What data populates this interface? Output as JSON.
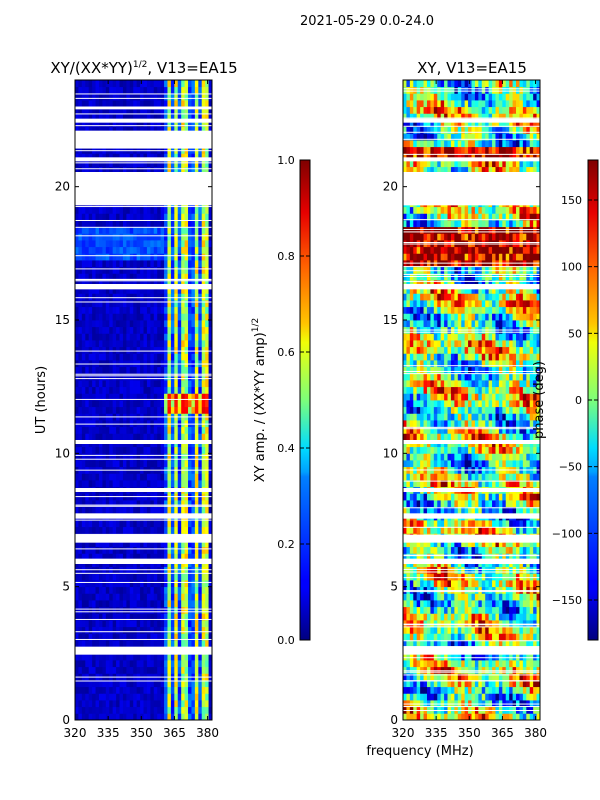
{
  "figure": {
    "suptitle": "2021-05-29 0.0-24.0",
    "xlabel": "frequency (MHz)"
  },
  "colors": {
    "jet_low": "#00007f",
    "jet_high": "#7f0000",
    "background": "#ffffff"
  },
  "chart_data": [
    {
      "type": "heatmap",
      "title_prefix": "XY/(XX*YY)",
      "title_exponent": "1/2",
      "title_suffix": ", V13=EA15",
      "xlabel": "",
      "ylabel": "UT (hours)",
      "xlim": [
        320,
        382
      ],
      "ylim": [
        0,
        24
      ],
      "xticks": [
        320,
        335,
        350,
        365,
        380
      ],
      "yticks": [
        0,
        5,
        10,
        15,
        20
      ],
      "bright_channels_mhz": [
        362,
        366,
        369,
        371,
        375,
        379
      ],
      "hot_ut_hours": [
        11.6,
        12.2
      ],
      "flagged_ut_intervals": [
        [
          2.45,
          2.75
        ],
        [
          5.85,
          6.05
        ],
        [
          6.65,
          6.95
        ],
        [
          7.55,
          7.75
        ],
        [
          8.55,
          8.7
        ],
        [
          10.35,
          10.5
        ],
        [
          16.15,
          16.35
        ],
        [
          19.3,
          20.55
        ],
        [
          20.95,
          21.1
        ],
        [
          21.45,
          22.1
        ],
        [
          22.4,
          22.55
        ],
        [
          22.9,
          23.0
        ]
      ],
      "colorbar": {
        "label_prefix": "XY amp. / (XX*YY amp)",
        "label_exponent": "1/2",
        "range": [
          0.0,
          1.0
        ],
        "tick_labels": [
          "0.0",
          "0.2",
          "0.4",
          "0.6",
          "0.8",
          "1.0"
        ]
      }
    },
    {
      "type": "heatmap",
      "title": "XY, V13=EA15",
      "xlabel": "frequency (MHz)",
      "ylabel": "",
      "xlim": [
        320,
        382
      ],
      "ylim": [
        0,
        24
      ],
      "xticks": [
        320,
        335,
        350,
        365,
        380
      ],
      "yticks": [
        0,
        5,
        10,
        15,
        20
      ],
      "flagged_ut_intervals": [
        [
          2.45,
          2.75
        ],
        [
          5.85,
          6.05
        ],
        [
          6.65,
          6.95
        ],
        [
          7.55,
          7.75
        ],
        [
          8.55,
          8.7
        ],
        [
          10.35,
          10.5
        ],
        [
          16.15,
          16.35
        ],
        [
          19.3,
          20.55
        ],
        [
          20.95,
          21.1
        ],
        [
          22.4,
          22.55
        ]
      ],
      "colorbar": {
        "label": "phase (deg)",
        "range": [
          -180,
          180
        ],
        "tick_values": [
          150,
          100,
          50,
          0,
          -50,
          -100,
          -150
        ],
        "tick_labels": [
          "150",
          "100",
          "50",
          "0",
          "−50",
          "−100",
          "−150"
        ]
      }
    }
  ]
}
